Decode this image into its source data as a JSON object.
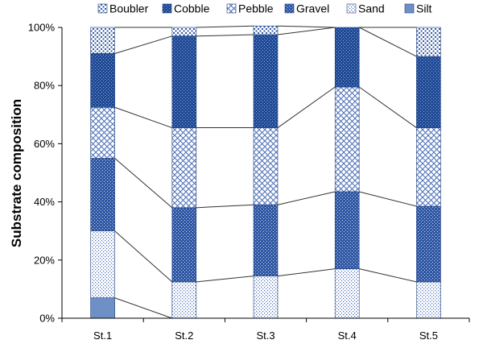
{
  "chart_data": {
    "type": "bar",
    "stacked": true,
    "categories": [
      "St.1",
      "St.2",
      "St.3",
      "St.4",
      "St.5"
    ],
    "series": [
      {
        "name": "Silt",
        "values": [
          7,
          0,
          0,
          0,
          0
        ],
        "color": "#6f8fc7",
        "pattern": "solid"
      },
      {
        "name": "Sand",
        "values": [
          23,
          12.5,
          14.5,
          17,
          12.5
        ],
        "color": "#4a6db5",
        "pattern": "dots"
      },
      {
        "name": "Gravel",
        "values": [
          25,
          25.5,
          24.5,
          26.5,
          26
        ],
        "color": "#2f57a3",
        "pattern": "dense"
      },
      {
        "name": "Pebble",
        "values": [
          17.5,
          27.5,
          26.5,
          36,
          27
        ],
        "color": "#4a6db5",
        "pattern": "cross"
      },
      {
        "name": "Cobble",
        "values": [
          18.5,
          31.5,
          32,
          20.5,
          24.5
        ],
        "color": "#1f4a96",
        "pattern": "dark"
      },
      {
        "name": "Boubler",
        "values": [
          9,
          3,
          3,
          0,
          10
        ],
        "color": "#2f57a3",
        "pattern": "coarse"
      }
    ],
    "legend_order": [
      "Boubler",
      "Cobble",
      "Pebble",
      "Gravel",
      "Sand",
      "Silt"
    ],
    "legend_placement": "top",
    "ylabel": "Substrate composition",
    "xlabel": "",
    "ylim": [
      0,
      100
    ],
    "y_ticks": [
      "0%",
      "20%",
      "40%",
      "60%",
      "80%",
      "100%"
    ],
    "series_lines": true
  }
}
